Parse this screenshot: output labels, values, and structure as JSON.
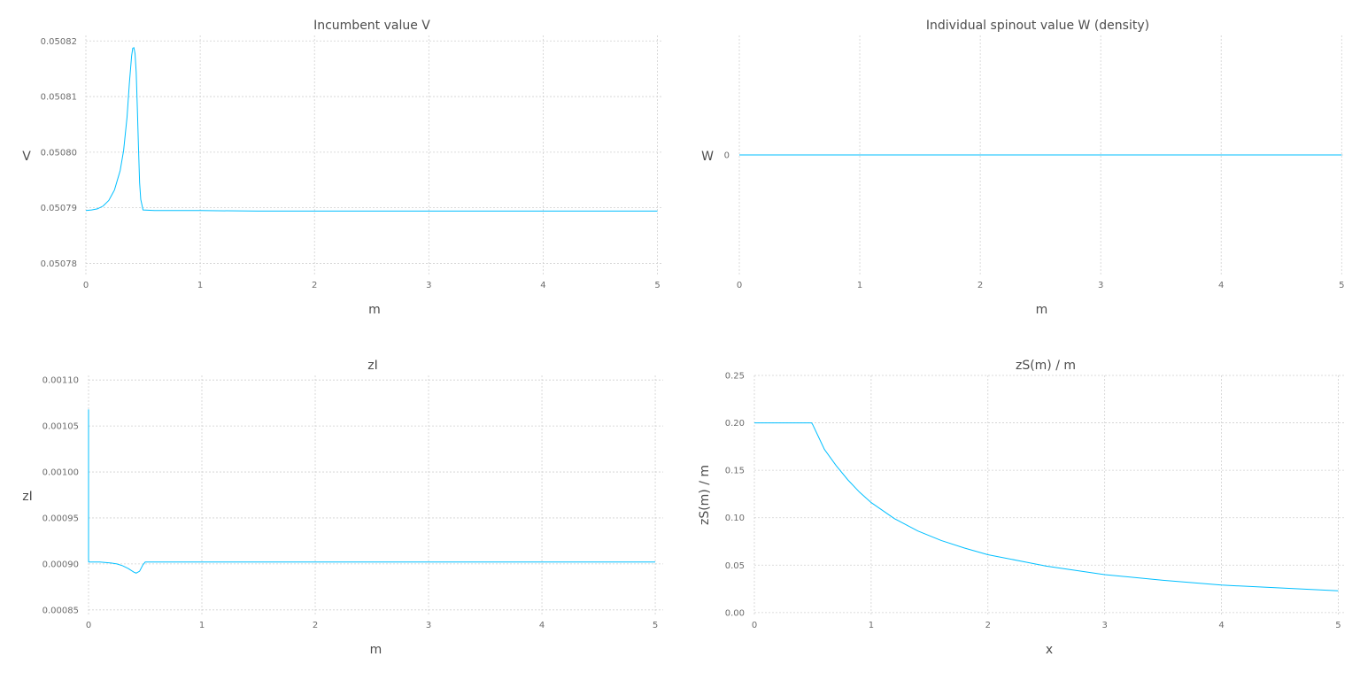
{
  "chart_data": [
    {
      "type": "line",
      "title": "Incumbent value V",
      "xlabel": "m",
      "ylabel": "V",
      "xlim": [
        0,
        5.05
      ],
      "ylim": [
        0.050778,
        0.050821
      ],
      "xticks": [
        "0",
        "1",
        "2",
        "3",
        "4",
        "5"
      ],
      "yticks": [
        "0.05078",
        "0.05079",
        "0.05080",
        "0.05081",
        "0.05082"
      ],
      "grid": true,
      "series": [
        {
          "color": "#00bfff",
          "x": [
            0.0,
            0.05,
            0.1,
            0.15,
            0.2,
            0.25,
            0.3,
            0.33,
            0.36,
            0.38,
            0.4,
            0.41,
            0.42,
            0.43,
            0.44,
            0.45,
            0.46,
            0.47,
            0.48,
            0.5,
            0.6,
            0.8,
            1.0,
            1.5,
            2.0,
            3.0,
            4.0,
            5.0
          ],
          "y": [
            0.0507895,
            0.0507896,
            0.0507898,
            0.0507903,
            0.0507913,
            0.0507932,
            0.0507967,
            0.0508003,
            0.0508063,
            0.0508123,
            0.0508173,
            0.0508187,
            0.0508188,
            0.0508177,
            0.0508144,
            0.050808,
            0.050801,
            0.0507945,
            0.0507915,
            0.0507896,
            0.0507895,
            0.0507895,
            0.0507895,
            0.0507894,
            0.0507894,
            0.0507894,
            0.0507894,
            0.0507894
          ]
        }
      ]
    },
    {
      "type": "line",
      "title": "Individual spinout value W (density)",
      "xlabel": "m",
      "ylabel": "W",
      "xlim": [
        0,
        5.02
      ],
      "ylim": [
        -1,
        1
      ],
      "xticks": [
        "0",
        "1",
        "2",
        "3",
        "4",
        "5"
      ],
      "yticks": [
        "0"
      ],
      "grid": true,
      "series": [
        {
          "color": "#00bfff",
          "x": [
            0.0,
            5.0
          ],
          "y": [
            0.0,
            0.0
          ]
        }
      ]
    },
    {
      "type": "line",
      "title": "zI",
      "xlabel": "m",
      "ylabel": "zI",
      "xlim": [
        0,
        5.07
      ],
      "ylim": [
        0.000845,
        0.001105
      ],
      "xticks": [
        "0",
        "1",
        "2",
        "3",
        "4",
        "5"
      ],
      "yticks": [
        "0.00085",
        "0.00090",
        "0.00095",
        "0.00100",
        "0.00105",
        "0.00110"
      ],
      "grid": true,
      "series": [
        {
          "color": "#00bfff",
          "x": [
            0.0,
            0.0,
            0.001,
            0.1,
            0.2,
            0.25,
            0.3,
            0.35,
            0.4,
            0.42,
            0.45,
            0.48,
            0.5,
            0.55,
            1.0,
            2.0,
            3.0,
            4.0,
            5.0
          ],
          "y": [
            0.001068,
            0.000906,
            0.000902,
            0.000902,
            0.000901,
            0.0009,
            0.000898,
            0.000895,
            0.000891,
            0.00089,
            0.000892,
            0.000899,
            0.000902,
            0.000902,
            0.000902,
            0.000902,
            0.000902,
            0.000902,
            0.000902
          ]
        }
      ]
    },
    {
      "type": "line",
      "title": "zS(m) / m",
      "xlabel": "x",
      "ylabel": "zS(m) / m",
      "xlim": [
        0,
        5.05
      ],
      "ylim": [
        -0.002,
        0.25
      ],
      "xticks": [
        "0",
        "1",
        "2",
        "3",
        "4",
        "5"
      ],
      "yticks": [
        "0.00",
        "0.05",
        "0.10",
        "0.15",
        "0.20",
        "0.25"
      ],
      "grid": true,
      "series": [
        {
          "color": "#00bfff",
          "x": [
            0.0,
            0.25,
            0.49,
            0.5,
            0.55,
            0.6,
            0.7,
            0.8,
            0.9,
            1.0,
            1.2,
            1.4,
            1.6,
            1.8,
            2.0,
            2.5,
            3.0,
            3.5,
            4.0,
            4.5,
            5.0
          ],
          "y": [
            0.2,
            0.2,
            0.2,
            0.198,
            0.185,
            0.172,
            0.155,
            0.14,
            0.127,
            0.116,
            0.099,
            0.086,
            0.076,
            0.068,
            0.061,
            0.049,
            0.04,
            0.034,
            0.029,
            0.026,
            0.023
          ]
        }
      ]
    }
  ]
}
